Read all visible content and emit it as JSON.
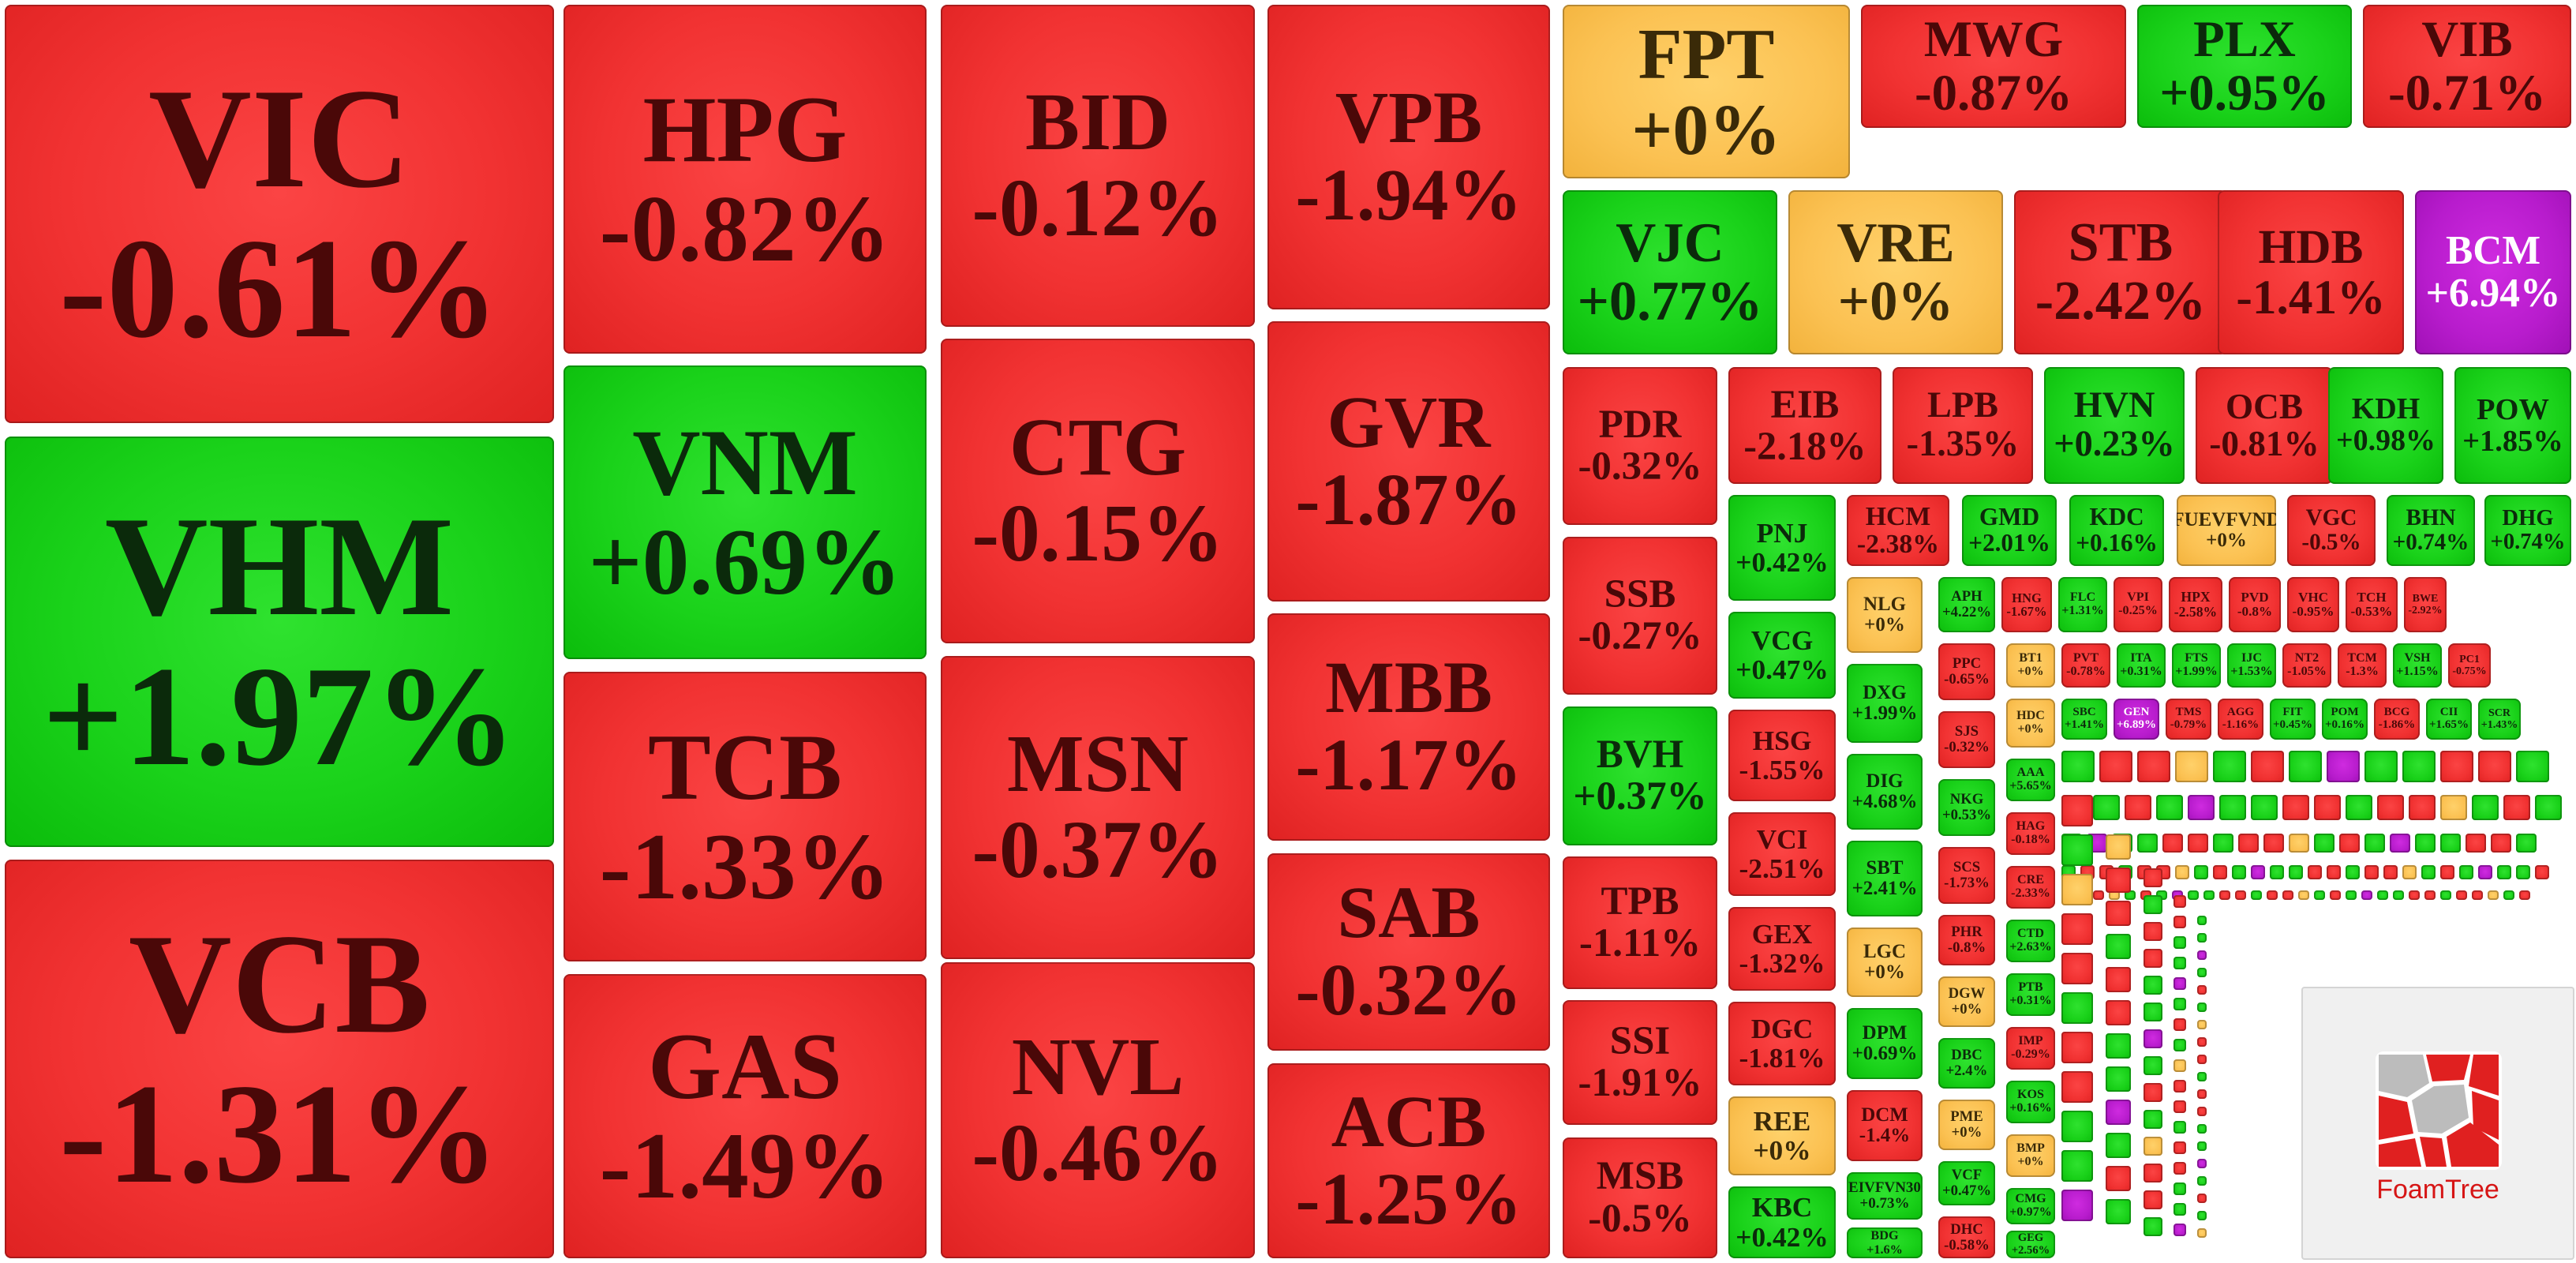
{
  "chart_data": {
    "type": "treemap",
    "value_format": "percent change",
    "colors": {
      "up": "#1ad21a",
      "down": "#f13232",
      "flat": "#fbc152",
      "ceiling": "#b81ccd"
    },
    "nodes": [
      {
        "symbol": "VIC",
        "change": "-0.61%"
      },
      {
        "symbol": "VHM",
        "change": "+1.97%"
      },
      {
        "symbol": "VCB",
        "change": "-1.31%"
      },
      {
        "symbol": "HPG",
        "change": "-0.82%"
      },
      {
        "symbol": "VNM",
        "change": "+0.69%"
      },
      {
        "symbol": "TCB",
        "change": "-1.33%"
      },
      {
        "symbol": "GAS",
        "change": "-1.49%"
      },
      {
        "symbol": "BID",
        "change": "-0.12%"
      },
      {
        "symbol": "CTG",
        "change": "-0.15%"
      },
      {
        "symbol": "MSN",
        "change": "-0.37%"
      },
      {
        "symbol": "NVL",
        "change": "-0.46%"
      },
      {
        "symbol": "VPB",
        "change": "-1.94%"
      },
      {
        "symbol": "GVR",
        "change": "-1.87%"
      },
      {
        "symbol": "MBB",
        "change": "-1.17%"
      },
      {
        "symbol": "SAB",
        "change": "-0.32%"
      },
      {
        "symbol": "ACB",
        "change": "-1.25%"
      },
      {
        "symbol": "FPT",
        "change": "+0%"
      },
      {
        "symbol": "MWG",
        "change": "-0.87%"
      },
      {
        "symbol": "PLX",
        "change": "+0.95%"
      },
      {
        "symbol": "VIB",
        "change": "-0.71%"
      },
      {
        "symbol": "VJC",
        "change": "+0.77%"
      },
      {
        "symbol": "VRE",
        "change": "+0%"
      },
      {
        "symbol": "STB",
        "change": "-2.42%"
      },
      {
        "symbol": "HDB",
        "change": "-1.41%"
      },
      {
        "symbol": "BCM",
        "change": "+6.94%"
      },
      {
        "symbol": "PDR",
        "change": "-0.32%"
      },
      {
        "symbol": "EIB",
        "change": "-2.18%"
      },
      {
        "symbol": "LPB",
        "change": "-1.35%"
      },
      {
        "symbol": "HVN",
        "change": "+0.23%"
      },
      {
        "symbol": "OCB",
        "change": "-0.81%"
      },
      {
        "symbol": "KDH",
        "change": "+0.98%"
      },
      {
        "symbol": "POW",
        "change": "+1.85%"
      },
      {
        "symbol": "SSB",
        "change": "-0.27%"
      },
      {
        "symbol": "BVH",
        "change": "+0.37%"
      },
      {
        "symbol": "TPB",
        "change": "-1.11%"
      },
      {
        "symbol": "SSI",
        "change": "-1.91%"
      },
      {
        "symbol": "MSB",
        "change": "-0.5%"
      },
      {
        "symbol": "PNJ",
        "change": "+0.42%"
      },
      {
        "symbol": "VCG",
        "change": "+0.47%"
      },
      {
        "symbol": "HSG",
        "change": "-1.55%"
      },
      {
        "symbol": "VCI",
        "change": "-2.51%"
      },
      {
        "symbol": "GEX",
        "change": "-1.32%"
      },
      {
        "symbol": "DGC",
        "change": "-1.81%"
      },
      {
        "symbol": "REE",
        "change": "+0%"
      },
      {
        "symbol": "KBC",
        "change": "+0.42%"
      },
      {
        "symbol": "HCM",
        "change": "-2.38%"
      },
      {
        "symbol": "GMD",
        "change": "+2.01%"
      },
      {
        "symbol": "KDC",
        "change": "+0.16%"
      },
      {
        "symbol": "FUEVFVND",
        "change": "+0%"
      },
      {
        "symbol": "VGC",
        "change": "-0.5%"
      },
      {
        "symbol": "BHN",
        "change": "+0.74%"
      },
      {
        "symbol": "DHG",
        "change": "+0.74%"
      },
      {
        "symbol": "NLG",
        "change": "+0%"
      },
      {
        "symbol": "DXG",
        "change": "+1.99%"
      },
      {
        "symbol": "DIG",
        "change": "+4.68%"
      },
      {
        "symbol": "SBT",
        "change": "+2.41%"
      },
      {
        "symbol": "LGC",
        "change": "+0%"
      },
      {
        "symbol": "DPM",
        "change": "+0.69%"
      },
      {
        "symbol": "DCM",
        "change": "-1.4%"
      },
      {
        "symbol": "EIVFVN30",
        "change": "+0.73%"
      },
      {
        "symbol": "BDG",
        "change": "+1.6%"
      },
      {
        "symbol": "APH",
        "change": "+4.22%"
      },
      {
        "symbol": "HNG",
        "change": "-1.67%"
      },
      {
        "symbol": "FLC",
        "change": "+1.31%"
      },
      {
        "symbol": "VPI",
        "change": "-0.25%"
      },
      {
        "symbol": "HPX",
        "change": "-2.58%"
      },
      {
        "symbol": "PVD",
        "change": "-0.8%"
      },
      {
        "symbol": "VHC",
        "change": "-0.95%"
      },
      {
        "symbol": "TCH",
        "change": "-0.53%"
      },
      {
        "symbol": "BWE",
        "change": "-2.92%"
      },
      {
        "symbol": "PPC",
        "change": "-0.65%"
      },
      {
        "symbol": "SJS",
        "change": "-0.32%"
      },
      {
        "symbol": "NKG",
        "change": "+0.53%"
      },
      {
        "symbol": "SCS",
        "change": "-1.73%"
      },
      {
        "symbol": "PHR",
        "change": "-0.8%"
      },
      {
        "symbol": "DGW",
        "change": "+0%"
      },
      {
        "symbol": "DBC",
        "change": "+2.4%"
      },
      {
        "symbol": "PME",
        "change": "+0%"
      },
      {
        "symbol": "VCF",
        "change": "+0.47%"
      },
      {
        "symbol": "DHC",
        "change": "-0.58%"
      },
      {
        "symbol": "BT1",
        "change": "+0%"
      },
      {
        "symbol": "PVT",
        "change": "-0.78%"
      },
      {
        "symbol": "ITA",
        "change": "+0.31%"
      },
      {
        "symbol": "FTS",
        "change": "+1.99%"
      },
      {
        "symbol": "IJC",
        "change": "+1.53%"
      },
      {
        "symbol": "NT2",
        "change": "-1.05%"
      },
      {
        "symbol": "TCM",
        "change": "-1.3%"
      },
      {
        "symbol": "VSH",
        "change": "+1.15%"
      },
      {
        "symbol": "PC1",
        "change": "-0.75%"
      },
      {
        "symbol": "HDC",
        "change": "+0%"
      },
      {
        "symbol": "AAA",
        "change": "+5.65%"
      },
      {
        "symbol": "HAG",
        "change": "-0.18%"
      },
      {
        "symbol": "CRE",
        "change": "-2.33%"
      },
      {
        "symbol": "CTD",
        "change": "+2.63%"
      },
      {
        "symbol": "PTB",
        "change": "+0.31%"
      },
      {
        "symbol": "IMP",
        "change": "-0.29%"
      },
      {
        "symbol": "KOS",
        "change": "+0.16%"
      },
      {
        "symbol": "BMP",
        "change": "+0%"
      },
      {
        "symbol": "CMG",
        "change": "+0.97%"
      },
      {
        "symbol": "GEG",
        "change": "+2.56%"
      },
      {
        "symbol": "SBC",
        "change": "+1.41%"
      },
      {
        "symbol": "GEN",
        "change": "+6.89%"
      },
      {
        "symbol": "TMS",
        "change": "-0.79%"
      },
      {
        "symbol": "AGG",
        "change": "-1.16%"
      },
      {
        "symbol": "FIT",
        "change": "+0.45%"
      },
      {
        "symbol": "POM",
        "change": "+0.16%"
      },
      {
        "symbol": "BCG",
        "change": "-1.86%"
      },
      {
        "symbol": "CII",
        "change": "+1.65%"
      },
      {
        "symbol": "SCR",
        "change": "+1.43%"
      }
    ]
  }
}
